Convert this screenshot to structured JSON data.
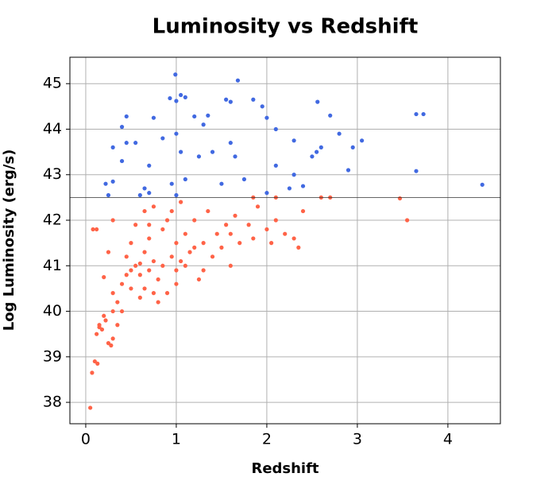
{
  "chart_data": {
    "type": "scatter",
    "title": "Luminosity vs Redshift",
    "x_label": "Redshift",
    "y_label": "Log Luminosity (erg/s)",
    "xlim": [
      -0.175,
      4.58
    ],
    "ylim": [
      37.53,
      45.58
    ],
    "xticks": [
      0,
      1,
      2,
      3,
      4
    ],
    "yticks": [
      38,
      39,
      40,
      41,
      42,
      43,
      44,
      45
    ],
    "grid": true,
    "hline": 42.5,
    "series": [
      {
        "color": "#4169e1",
        "x": [
          0.99,
          1.68,
          0.93,
          1.05,
          1.0,
          1.1,
          1.55,
          1.6,
          1.85,
          2.56,
          0.45,
          0.4,
          0.75,
          1.2,
          1.35,
          1.3,
          1.95,
          2.0,
          2.1,
          2.7,
          3.65,
          3.73,
          0.3,
          0.45,
          0.55,
          0.85,
          1.0,
          1.6,
          2.3,
          2.6,
          2.55,
          2.8,
          2.95,
          3.05,
          0.4,
          0.7,
          1.05,
          1.25,
          1.4,
          1.65,
          2.1,
          2.3,
          2.5,
          2.9,
          0.22,
          0.3,
          0.65,
          0.7,
          0.95,
          1.1,
          1.5,
          1.75,
          2.0,
          2.25,
          3.65,
          4.38,
          0.6,
          0.25,
          1.0,
          2.4
        ],
        "values": [
          45.2,
          45.07,
          44.68,
          44.75,
          44.62,
          44.7,
          44.65,
          44.6,
          44.65,
          44.6,
          44.28,
          44.05,
          44.25,
          44.28,
          44.3,
          44.1,
          44.5,
          44.25,
          44.0,
          44.3,
          44.33,
          44.33,
          43.6,
          43.7,
          43.7,
          43.8,
          43.9,
          43.7,
          43.75,
          43.6,
          43.5,
          43.9,
          43.6,
          43.75,
          43.3,
          43.2,
          43.5,
          43.4,
          43.5,
          43.4,
          43.2,
          43.0,
          43.4,
          43.1,
          42.8,
          42.85,
          42.7,
          42.6,
          42.8,
          42.9,
          42.8,
          42.9,
          42.6,
          42.7,
          43.08,
          42.78,
          42.55,
          42.55,
          42.55,
          42.75
        ]
      },
      {
        "color": "#ff6347",
        "x": [
          0.05,
          0.07,
          0.1,
          0.13,
          0.12,
          0.15,
          0.18,
          0.22,
          0.25,
          0.2,
          0.08,
          0.12,
          0.3,
          0.3,
          0.35,
          0.35,
          0.4,
          0.45,
          0.5,
          0.55,
          0.6,
          0.6,
          0.65,
          0.65,
          0.7,
          0.7,
          0.75,
          0.75,
          0.8,
          0.85,
          0.85,
          0.9,
          0.95,
          1.0,
          1.0,
          1.05,
          1.05,
          1.1,
          1.15,
          1.2,
          1.2,
          1.25,
          1.3,
          1.35,
          1.4,
          1.45,
          1.5,
          1.55,
          1.6,
          1.6,
          1.65,
          1.7,
          1.8,
          1.85,
          1.9,
          2.0,
          2.05,
          2.1,
          2.2,
          2.3,
          2.35,
          2.4,
          2.7,
          3.47,
          3.55,
          0.3,
          0.5,
          0.45,
          0.55,
          0.65,
          0.7,
          0.75,
          0.9,
          0.95,
          0.3,
          0.4,
          0.2,
          0.25,
          1.0,
          1.1,
          0.8,
          0.15,
          0.28,
          1.85,
          2.1,
          2.6,
          1.3,
          0.5,
          0.6
        ],
        "values": [
          37.88,
          38.65,
          38.9,
          38.85,
          39.5,
          39.7,
          39.6,
          39.8,
          39.3,
          39.9,
          41.8,
          41.8,
          40.0,
          40.4,
          40.2,
          39.7,
          40.6,
          40.8,
          40.5,
          41.0,
          40.3,
          40.8,
          41.3,
          40.5,
          40.9,
          41.6,
          40.4,
          41.1,
          40.7,
          41.0,
          41.8,
          40.4,
          41.2,
          41.5,
          40.9,
          42.4,
          41.1,
          41.7,
          41.3,
          42.0,
          41.4,
          40.7,
          41.5,
          42.2,
          41.2,
          41.7,
          41.4,
          41.9,
          41.0,
          41.7,
          42.1,
          41.5,
          41.9,
          41.6,
          42.3,
          41.8,
          41.5,
          42.0,
          41.7,
          41.6,
          41.4,
          42.2,
          42.5,
          42.48,
          42.0,
          42.0,
          41.5,
          41.2,
          41.9,
          42.2,
          41.9,
          42.3,
          42.0,
          42.2,
          39.4,
          40.0,
          40.75,
          41.3,
          40.6,
          41.0,
          40.2,
          39.65,
          39.25,
          42.5,
          42.5,
          42.5,
          40.9,
          40.9,
          41.05
        ]
      }
    ]
  }
}
